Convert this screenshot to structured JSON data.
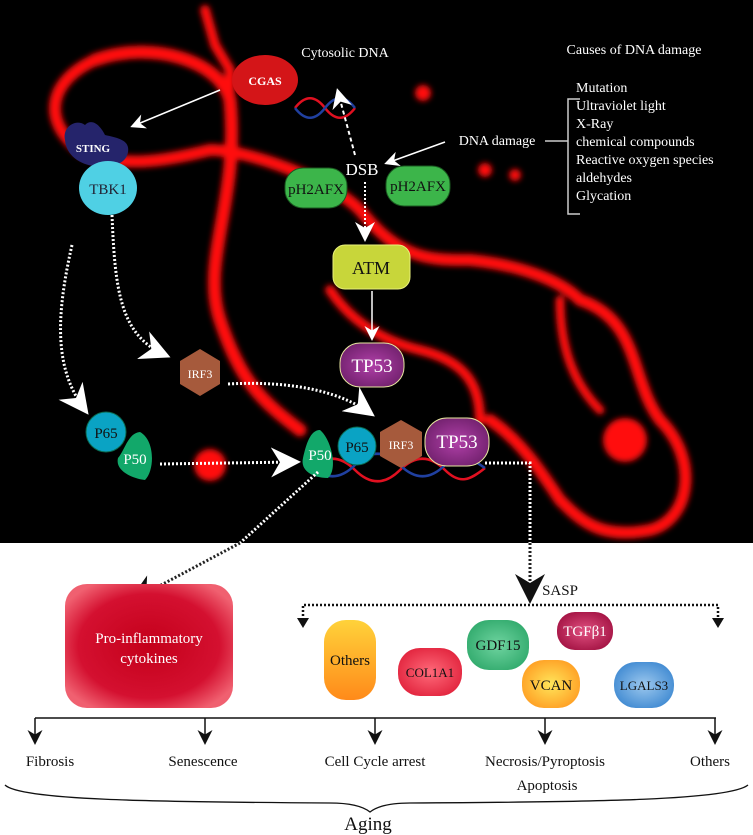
{
  "top": {
    "cgas": "CGAS",
    "cytosolic_dna": "Cytosolic DNA",
    "causes_title": "Causes of DNA damage",
    "causes": [
      "Mutation",
      "Ultraviolet light",
      "X-Ray",
      "chemical compounds",
      "Reactive oxygen species",
      "aldehydes",
      "Glycation"
    ],
    "dna_damage": "DNA damage",
    "dsb": "DSB",
    "ph2afx_left": "pH2AFX",
    "ph2afx_right": "pH2AFX",
    "sting": "STING",
    "tbk1": "TBK1",
    "atm": "ATM",
    "tp53": "TP53",
    "irf3": "IRF3",
    "p65": "P65",
    "p50": "P50",
    "complex": {
      "p50": "P50",
      "p65": "P65",
      "irf3": "IRF3",
      "tp53": "TP53"
    }
  },
  "bottom": {
    "pro_inflammatory": [
      "Pro-inflammatory",
      "cytokines"
    ],
    "sasp": "SASP",
    "sasp_factors": {
      "others": "Others",
      "col1a1": "COL1A1",
      "gdf15": "GDF15",
      "tgfb1": "TGFβ1",
      "vcan": "VCAN",
      "lgals3": "LGALS3"
    },
    "outcomes": [
      "Fibrosis",
      "Senescence",
      "Cell Cycle arrest",
      "Necrosis/Pyroptosis",
      "Others"
    ],
    "apoptosis": "Apoptosis",
    "aging": "Aging"
  },
  "colors": {
    "background_top": "#000000",
    "nucleus_red": "#ff1a1a",
    "cgas": "#d41518",
    "sting": "#25246b",
    "tbk1": "#4fd0e4",
    "ph2afx": "#3cb54a",
    "atm": "#c8d63a",
    "tp53": "#8e2a86",
    "irf3": "#a65a3c",
    "p65": "#0aa3c4",
    "p50": "#12a86a"
  }
}
